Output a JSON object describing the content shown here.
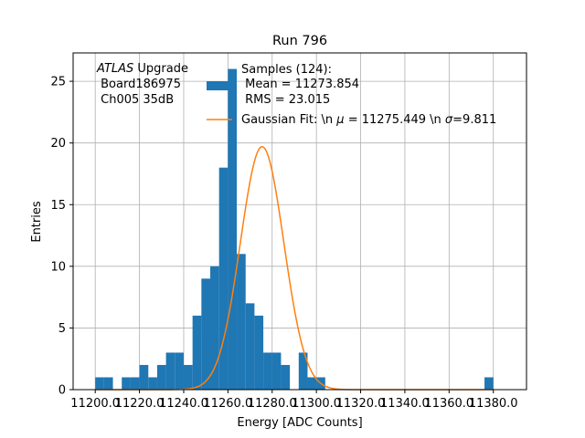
{
  "chart_data": {
    "type": "bar",
    "title": "Run 796",
    "xlabel": "Energy [ADC Counts]",
    "ylabel": "Entries",
    "xlim": [
      1119.0,
      11395.0
    ],
    "xlim_true": [
      11190.0,
      11395.0
    ],
    "ylim": [
      0,
      27.3
    ],
    "xticks": [
      11200.0,
      11220.0,
      11240.0,
      11260.0,
      11280.0,
      11300.0,
      11320.0,
      11340.0,
      11360.0,
      11380.0
    ],
    "xtick_labels": [
      "11200.0",
      "11220.0",
      "11240.0",
      "11260.0",
      "11280.0",
      "11300.0",
      "11320.0",
      "11340.0",
      "11360.0",
      "11380.0"
    ],
    "yticks": [
      0,
      5,
      10,
      15,
      20,
      25
    ],
    "ytick_labels": [
      "0",
      "5",
      "10",
      "15",
      "20",
      "25"
    ],
    "grid": true,
    "histogram": {
      "name": "Samples (124):\n Mean = 11273.854\n RMS = 23.015",
      "color": "#1f77b4",
      "bin_edges": [
        11200,
        11204,
        11208,
        11212,
        11216,
        11220,
        11224,
        11228,
        11232,
        11236,
        11240,
        11244,
        11248,
        11252,
        11256,
        11260,
        11264,
        11268,
        11272,
        11276,
        11280,
        11284,
        11288,
        11292,
        11296,
        11300,
        11304,
        11308,
        11312,
        11316,
        11320,
        11324,
        11328,
        11376,
        11380
      ],
      "counts": [
        1,
        1,
        0,
        1,
        1,
        2,
        1,
        2,
        3,
        3,
        2,
        6,
        9,
        10,
        18,
        26,
        11,
        7,
        6,
        3,
        3,
        2,
        0,
        3,
        1,
        1,
        0,
        0,
        0,
        0,
        0,
        0,
        0,
        1
      ],
      "bins": [
        {
          "x0": 11200,
          "x1": 11204,
          "count": 1
        },
        {
          "x0": 11204,
          "x1": 11208,
          "count": 1
        },
        {
          "x0": 11212,
          "x1": 11216,
          "count": 1
        },
        {
          "x0": 11216,
          "x1": 11220,
          "count": 1
        },
        {
          "x0": 11220,
          "x1": 11224,
          "count": 2
        },
        {
          "x0": 11224,
          "x1": 11228,
          "count": 1
        },
        {
          "x0": 11228,
          "x1": 11232,
          "count": 2
        },
        {
          "x0": 11232,
          "x1": 11236,
          "count": 3
        },
        {
          "x0": 11236,
          "x1": 11240,
          "count": 3
        },
        {
          "x0": 11240,
          "x1": 11244,
          "count": 2
        },
        {
          "x0": 11244,
          "x1": 11248,
          "count": 6
        },
        {
          "x0": 11248,
          "x1": 11252,
          "count": 9
        },
        {
          "x0": 11252,
          "x1": 11256,
          "count": 10
        },
        {
          "x0": 11256,
          "x1": 11260,
          "count": 18
        },
        {
          "x0": 11260,
          "x1": 11264,
          "count": 26
        },
        {
          "x0": 11264,
          "x1": 11268,
          "count": 11
        },
        {
          "x0": 11268,
          "x1": 11272,
          "count": 7
        },
        {
          "x0": 11272,
          "x1": 11276,
          "count": 6
        },
        {
          "x0": 11276,
          "x1": 11280,
          "count": 3
        },
        {
          "x0": 11280,
          "x1": 11284,
          "count": 3
        },
        {
          "x0": 11284,
          "x1": 11288,
          "count": 2
        },
        {
          "x0": 11292,
          "x1": 11296,
          "count": 3
        },
        {
          "x0": 11296,
          "x1": 11300,
          "count": 1
        },
        {
          "x0": 11300,
          "x1": 11304,
          "count": 1
        },
        {
          "x0": 11376,
          "x1": 11380,
          "count": 1
        }
      ]
    },
    "fit": {
      "name": "Gaussian Fit: \\n μ = 11275.449 \\n σ=9.811",
      "color": "#ff7f0e",
      "mu": 11275.449,
      "sigma": 9.811,
      "amplitude": 19.7,
      "x_range": [
        11200,
        11380
      ]
    },
    "annotation": {
      "line1_italic": "ATLAS",
      "line1_rest": " Upgrade",
      "line2": " Board186975",
      "line3": " Ch005 35dB"
    },
    "legend": {
      "placement": "top-right",
      "hist_lines": [
        "Samples (124):",
        " Mean = 11273.854",
        " RMS = 23.015"
      ],
      "fit_label_prefix": "Gaussian Fit: \\n ",
      "fit_label_mu": "μ",
      "fit_label_mid": " = 11275.449 \\n ",
      "fit_label_sigma": "σ",
      "fit_label_end": "=9.811"
    }
  }
}
